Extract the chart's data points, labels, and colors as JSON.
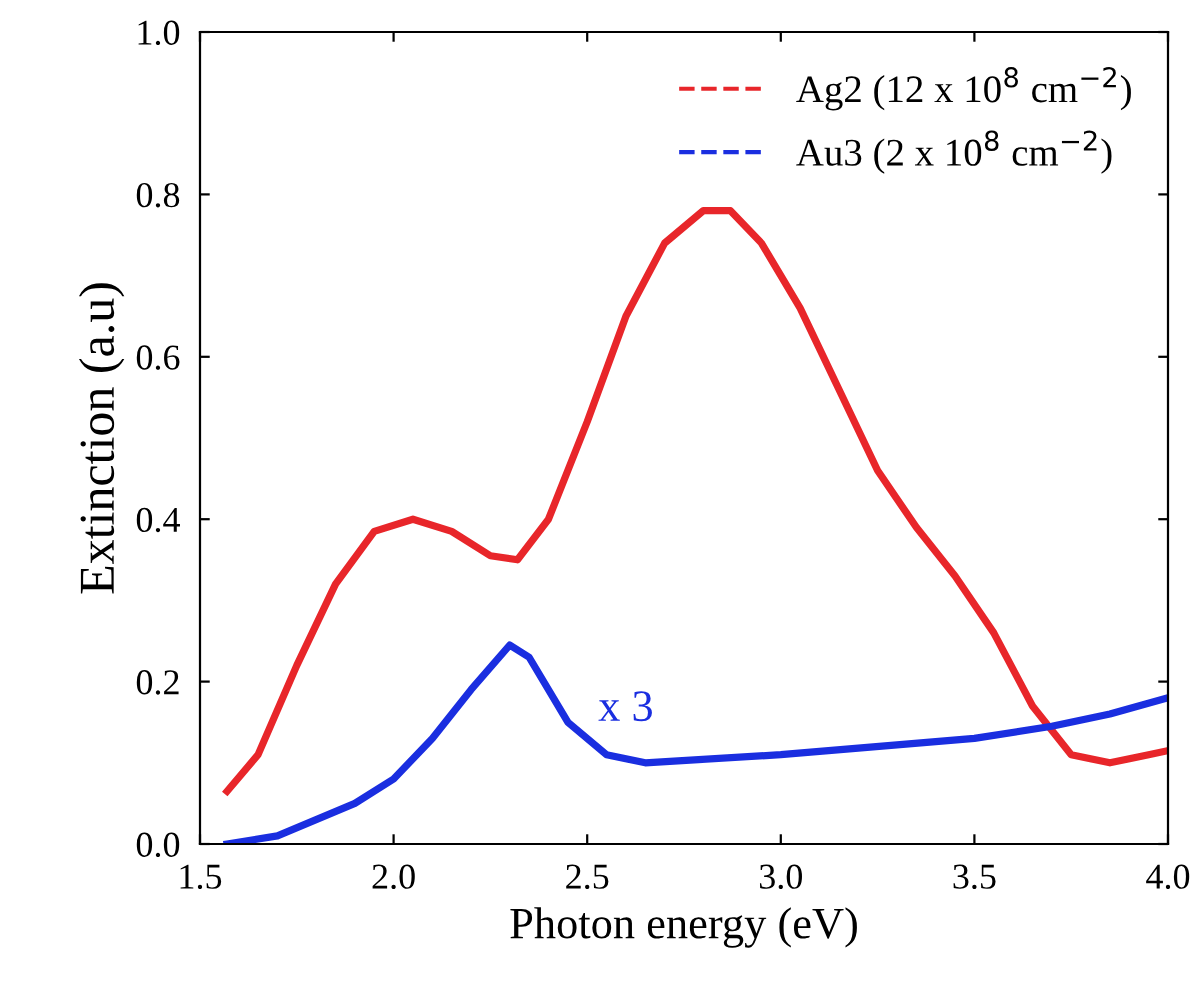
{
  "chart_data": {
    "type": "line",
    "xlabel": "Photon energy (eV)",
    "ylabel": "Extinction (a.u)",
    "xlim": [
      1.5,
      4.0
    ],
    "ylim": [
      0.0,
      1.0
    ],
    "xticks": [
      {
        "value": 1.5,
        "label": "1.5"
      },
      {
        "value": 2.0,
        "label": "2.0"
      },
      {
        "value": 2.5,
        "label": "2.5"
      },
      {
        "value": 3.0,
        "label": "3.0"
      },
      {
        "value": 3.5,
        "label": "3.5"
      },
      {
        "value": 4.0,
        "label": "4.0"
      }
    ],
    "yticks": [
      {
        "value": 0.0,
        "label": "0.0"
      },
      {
        "value": 0.2,
        "label": "0.2"
      },
      {
        "value": 0.4,
        "label": "0.4"
      },
      {
        "value": 0.6,
        "label": "0.6"
      },
      {
        "value": 0.8,
        "label": "0.8"
      },
      {
        "value": 1.0,
        "label": "1.0"
      }
    ],
    "legend": "top right",
    "grid": false,
    "series": [
      {
        "name": "Ag2 (12 x 10$^{8}$ cm$^{−2}$)",
        "color": "#e8262a",
        "x": [
          1.57,
          1.65,
          1.75,
          1.85,
          1.95,
          2.05,
          2.15,
          2.25,
          2.32,
          2.4,
          2.5,
          2.6,
          2.7,
          2.8,
          2.87,
          2.95,
          3.05,
          3.15,
          3.25,
          3.35,
          3.45,
          3.55,
          3.65,
          3.75,
          3.85,
          3.95,
          4.0
        ],
        "values": [
          0.065,
          0.11,
          0.22,
          0.32,
          0.385,
          0.4,
          0.385,
          0.355,
          0.35,
          0.4,
          0.52,
          0.65,
          0.74,
          0.78,
          0.78,
          0.74,
          0.66,
          0.56,
          0.46,
          0.39,
          0.33,
          0.26,
          0.17,
          0.11,
          0.1,
          0.11,
          0.115
        ]
      },
      {
        "name": "Au3 (2 x 10$^{8}$ cm$^{−2}$)",
        "color": "#1a2ee0",
        "x": [
          1.57,
          1.7,
          1.8,
          1.9,
          2.0,
          2.1,
          2.2,
          2.3,
          2.35,
          2.45,
          2.55,
          2.65,
          3.0,
          3.5,
          3.7,
          3.85,
          4.0
        ],
        "values": [
          0.0,
          0.01,
          0.03,
          0.05,
          0.08,
          0.13,
          0.19,
          0.245,
          0.23,
          0.15,
          0.11,
          0.1,
          0.11,
          0.13,
          0.145,
          0.16,
          0.18
        ]
      }
    ],
    "annotations": [
      "x 3"
    ]
  }
}
